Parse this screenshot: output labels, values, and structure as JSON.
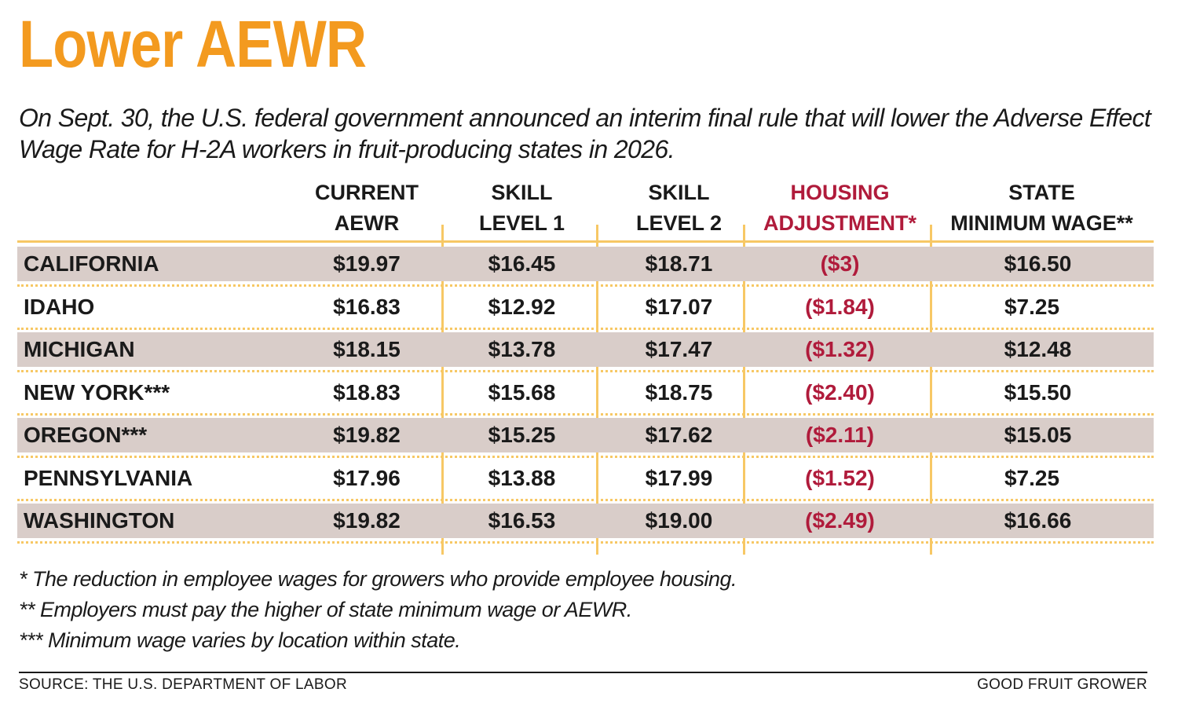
{
  "title": "Lower AEWR",
  "subtitle": "On Sept. 30, the U.S. federal government announced an interim final rule that will lower the Adverse Effect Wage Rate for H-2A workers in fruit-producing states in 2026.",
  "columns": [
    "CURRENT\nAEWR",
    "SKILL\nLEVEL 1",
    "SKILL\nLEVEL 2",
    "HOUSING\nADJUSTMENT*",
    "STATE\nMINIMUM WAGE**"
  ],
  "rows": [
    [
      "CALIFORNIA",
      "$19.97",
      "$16.45",
      "$18.71",
      "($3)",
      "$16.50"
    ],
    [
      "IDAHO",
      "$16.83",
      "$12.92",
      "$17.07",
      "($1.84)",
      "$7.25"
    ],
    [
      "MICHIGAN",
      "$18.15",
      "$13.78",
      "$17.47",
      "($1.32)",
      "$12.48"
    ],
    [
      "NEW YORK***",
      "$18.83",
      "$15.68",
      "$18.75",
      "($2.40)",
      "$15.50"
    ],
    [
      "OREGON***",
      "$19.82",
      "$15.25",
      "$17.62",
      "($2.11)",
      "$15.05"
    ],
    [
      "PENNSYLVANIA",
      "$17.96",
      "$13.88",
      "$17.99",
      "($1.52)",
      "$7.25"
    ],
    [
      "WASHINGTON",
      "$19.82",
      "$16.53",
      "$19.00",
      "($2.49)",
      "$16.66"
    ]
  ],
  "notes": [
    "* The reduction in employee wages for growers who provide employee housing.",
    "** Employers must pay the higher of state minimum wage or AEWR.",
    "*** Minimum wage varies by location within state."
  ],
  "source": "SOURCE: THE U.S. DEPARTMENT OF LABOR",
  "brand": "GOOD FRUIT GROWER",
  "colors": {
    "title": "#f39a1f",
    "accent_red": "#b01b3b",
    "rule_gold": "#f7c865",
    "row_shade": "#d9cdc9"
  }
}
